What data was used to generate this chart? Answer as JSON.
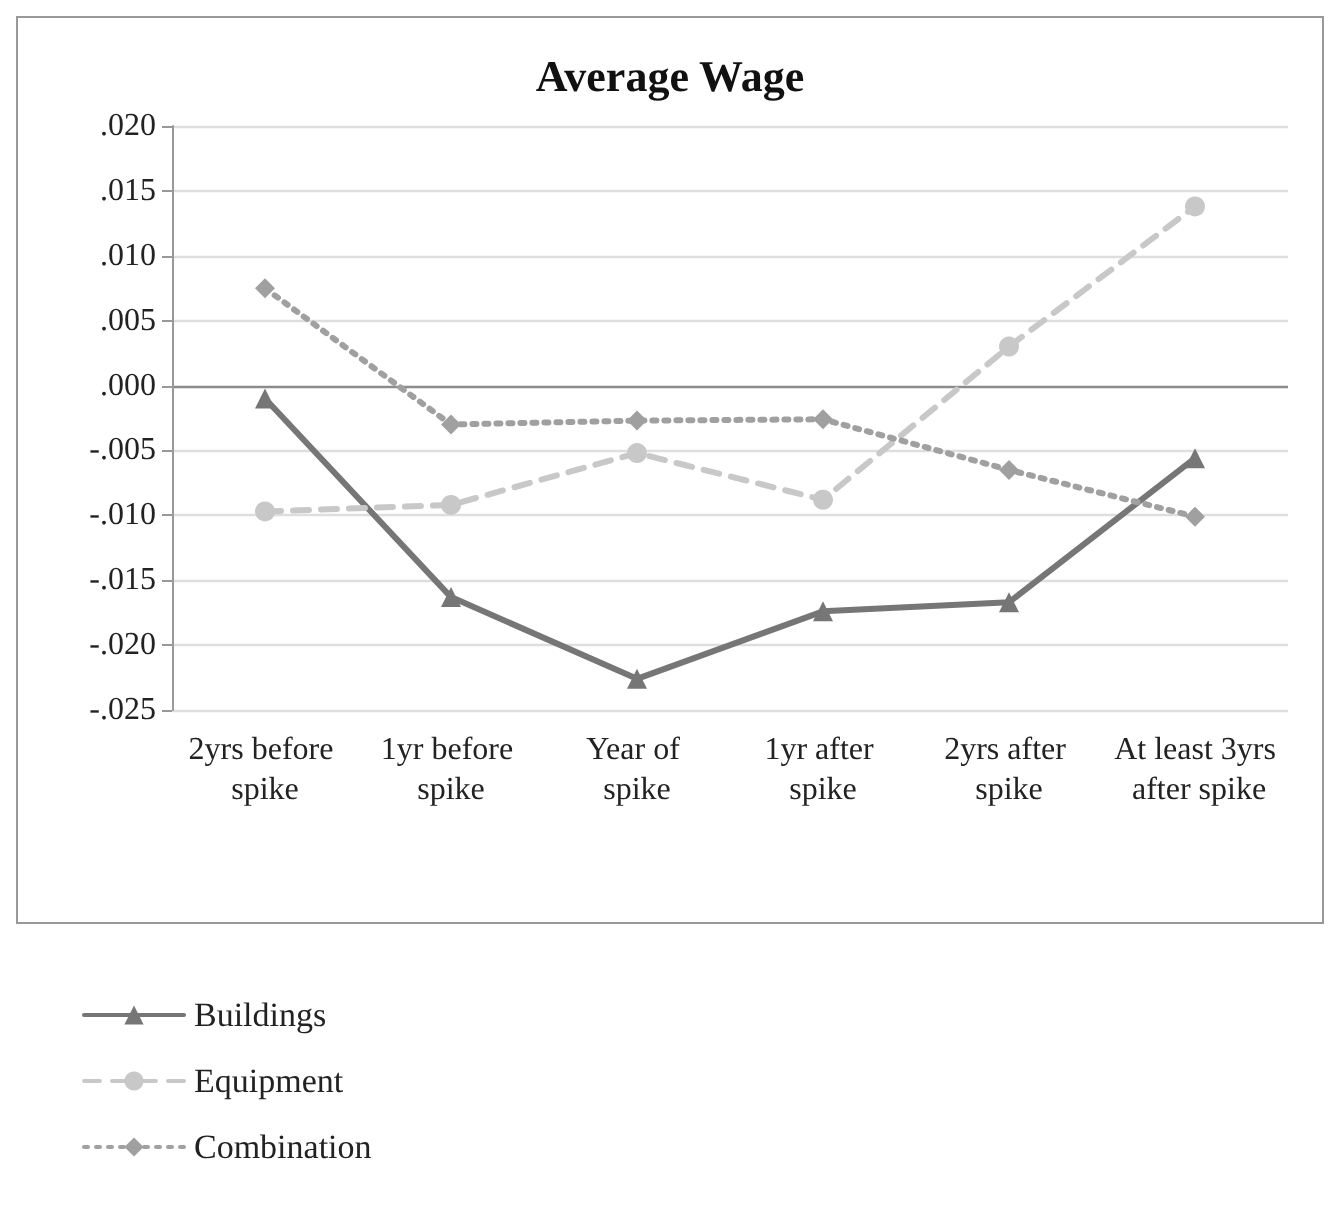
{
  "chart_data": {
    "type": "line",
    "title": "Average Wage",
    "categories": [
      "2yrs before spike",
      "1yr before spike",
      "Year of spike",
      "1yr after spike",
      "2yrs after spike",
      "At least 3yrs after spike"
    ],
    "series": [
      {
        "name": "Buildings",
        "color": "#767676",
        "marker": "triangle",
        "line_style": "solid",
        "values": [
          -0.001,
          -0.0163,
          -0.0226,
          -0.0174,
          -0.0167,
          -0.0056
        ]
      },
      {
        "name": "Equipment",
        "color": "#c8c8c8",
        "marker": "circle",
        "line_style": "dashed",
        "values": [
          -0.0097,
          -0.0092,
          -0.0052,
          -0.0088,
          0.003,
          0.0138
        ]
      },
      {
        "name": "Combination",
        "color": "#a0a0a0",
        "marker": "diamond",
        "line_style": "dotted",
        "values": [
          0.0075,
          -0.003,
          -0.0027,
          -0.0026,
          -0.0065,
          -0.0101
        ]
      }
    ],
    "ylim": [
      -0.025,
      0.02
    ],
    "yticks": [
      {
        "value": -0.025,
        "label": "-.025"
      },
      {
        "value": -0.02,
        "label": "-.020"
      },
      {
        "value": -0.015,
        "label": "-.015"
      },
      {
        "value": -0.01,
        "label": "-.010"
      },
      {
        "value": -0.005,
        "label": "-.005"
      },
      {
        "value": 0,
        "label": ".000"
      },
      {
        "value": 0.005,
        "label": ".005"
      },
      {
        "value": 0.01,
        "label": ".010"
      },
      {
        "value": 0.015,
        "label": ".015"
      },
      {
        "value": 0.02,
        "label": ".020"
      }
    ],
    "grid": "y",
    "legend": "bottom left"
  }
}
